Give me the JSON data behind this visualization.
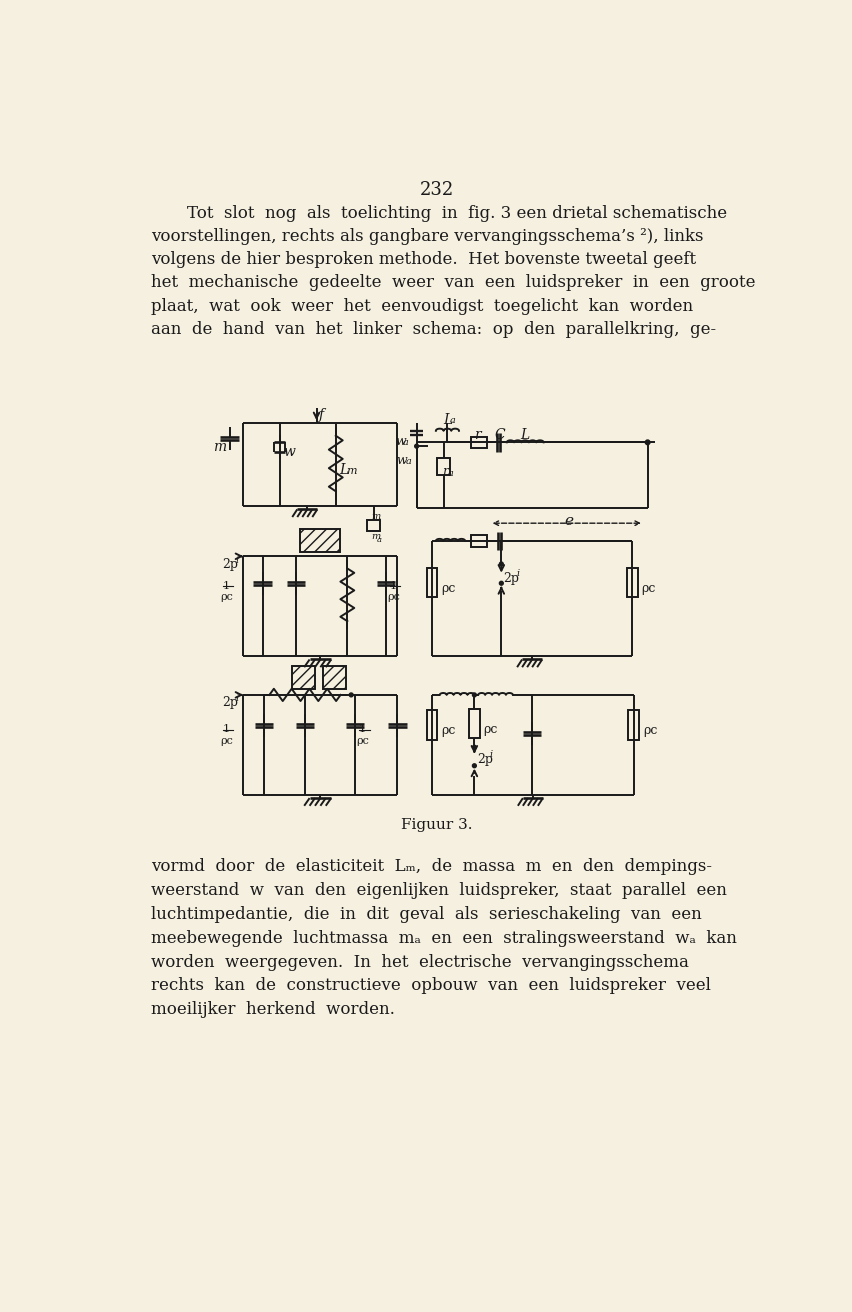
{
  "bg_color": "#f5f0e0",
  "page_number": "232",
  "top_text": [
    {
      "x": 75,
      "text": "    Tot  slot  nog  als  toelichting  in  fig. 3 een drietal schematische"
    },
    {
      "x": 55,
      "text": "voorstellingen, rechts als gangbare vervangingsschema’s ²), links"
    },
    {
      "x": 55,
      "text": "volgens de hier besproken methode.  Het bovenste tweetal geeft"
    },
    {
      "x": 55,
      "text": "het  mechanische  gedeelte  weer  van  een  luidspreker  in  een  groote"
    },
    {
      "x": 55,
      "text": "plaat,  wat  ook  weer  het  eenvoudigst  toegelicht  kan  worden"
    },
    {
      "x": 55,
      "text": "aan  de  hand  van  het  linker  schema:  op  den  parallelkring,  ge-"
    }
  ],
  "bottom_text": [
    {
      "x": 55,
      "text": "vormd  door  de  elasticiteit  Lₘ,  de  massa  m  en  den  dempings-"
    },
    {
      "x": 55,
      "text": "weerstand  w  van  den  eigenlijken  luidspreker,  staat  parallel  een"
    },
    {
      "x": 55,
      "text": "luchtimpedantie,  die  in  dit  geval  als  serieschakeling  van  een"
    },
    {
      "x": 55,
      "text": "meebewegende  luchtmassa  mₐ  en  een  stralingsweerstand  wₐ  kan"
    },
    {
      "x": 55,
      "text": "worden  weergegeven.  In  het  electrische  vervangingsschema"
    },
    {
      "x": 55,
      "text": "rechts  kan  de  constructieve  opbouw  van  een  luidspreker  veel"
    },
    {
      "x": 55,
      "text": "moeilijker  herkend  worden."
    }
  ],
  "fig_caption": "Figuur 3.",
  "line_color": "#1a1a1a"
}
